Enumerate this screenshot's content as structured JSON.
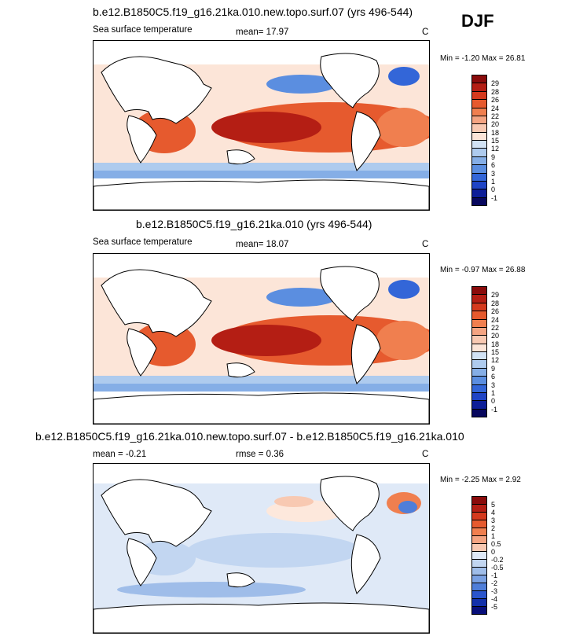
{
  "season": "DJF",
  "panels": [
    {
      "title": "b.e12.B1850C5.f19_g16.21ka.010.new.topo.surf.07 (yrs 496-544)",
      "left_label": "Sea surface temperature",
      "stat": "mean=  17.97",
      "units": "C",
      "minmax": "Min =  -1.20 Max =  26.81",
      "levels": [
        "29",
        "28",
        "26",
        "24",
        "22",
        "20",
        "18",
        "15",
        "12",
        "9",
        "6",
        "3",
        "1",
        "0",
        "-1"
      ]
    },
    {
      "title": "b.e12.B1850C5.f19_g16.21ka.010 (yrs 496-544)",
      "left_label": "Sea surface temperature",
      "stat": "mean=  18.07",
      "units": "C",
      "minmax": "Min =  -0.97 Max =  26.88",
      "levels": [
        "29",
        "28",
        "26",
        "24",
        "22",
        "20",
        "18",
        "15",
        "12",
        "9",
        "6",
        "3",
        "1",
        "0",
        "-1"
      ]
    },
    {
      "title": "b.e12.B1850C5.f19_g16.21ka.010.new.topo.surf.07 - b.e12.B1850C5.f19_g16.21ka.010",
      "left_label": "mean =  -0.21",
      "stat": "rmse =   0.36",
      "units": "C",
      "minmax": "Min =  -2.25 Max =   2.92",
      "levels": [
        "5",
        "4",
        "3",
        "2",
        "1",
        "0.5",
        "0",
        "-0.2",
        "-0.5",
        "-1",
        "-2",
        "-3",
        "-4",
        "-5"
      ]
    }
  ],
  "colors": {
    "abs": [
      "#8a0b0b",
      "#b41e14",
      "#d53a1e",
      "#e65a2e",
      "#f07f4f",
      "#f4a482",
      "#f8c9b2",
      "#fce5d8",
      "#d2e3f5",
      "#aecbee",
      "#85aee6",
      "#5b8ee0",
      "#3366d8",
      "#1f44c6",
      "#0d1e98",
      "#08085e"
    ],
    "diff": [
      "#8a0b0b",
      "#b41e14",
      "#d53a1e",
      "#e65a2e",
      "#f07f4f",
      "#f4a482",
      "#f8c9b2",
      "#fde8dc",
      "#dfe9f7",
      "#c2d6f1",
      "#9fbde9",
      "#7aa1e3",
      "#4f7ed9",
      "#2a55cc",
      "#1230aa",
      "#080f7a"
    ]
  }
}
